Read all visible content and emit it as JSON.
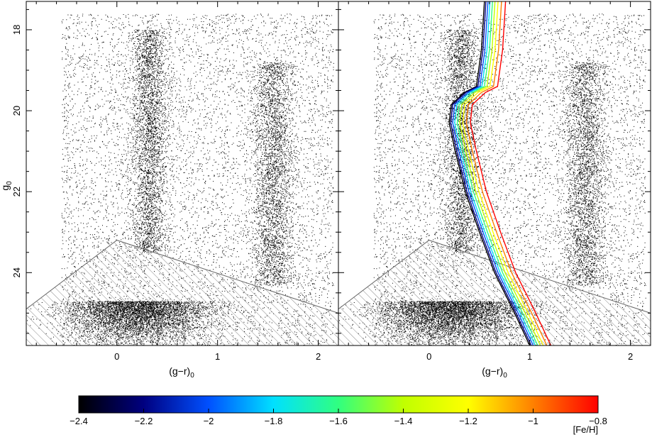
{
  "chart_data": [
    {
      "type": "scatter",
      "panel": "left",
      "title": "",
      "xlabel": "(g−r)",
      "xlabel_sub": "0",
      "ylabel": "g",
      "ylabel_sub": "0",
      "xlim": [
        -0.9,
        2.2
      ],
      "ylim": [
        25.8,
        17.3
      ],
      "y_inverted": true,
      "xticks": [
        0,
        1,
        2
      ],
      "yticks": [
        18,
        20,
        22,
        24
      ],
      "hatched_region": [
        [
          -0.9,
          24.9
        ],
        [
          0.0,
          23.2
        ],
        [
          2.2,
          25.0
        ],
        [
          2.2,
          25.8
        ],
        [
          -0.9,
          25.8
        ]
      ],
      "density_features": [
        {
          "x": 0.32,
          "y_range": [
            18.0,
            23.5
          ]
        },
        {
          "x": 1.55,
          "y_range": [
            18.8,
            24.3
          ]
        },
        {
          "x_range": [
            -0.5,
            0.9
          ],
          "y_range": [
            23.5,
            25.8
          ]
        }
      ]
    },
    {
      "type": "line",
      "panel": "right",
      "title": "",
      "xlabel": "(g−r)",
      "xlabel_sub": "0",
      "xlim": [
        -0.9,
        2.2
      ],
      "ylim": [
        25.8,
        17.3
      ],
      "y_inverted": true,
      "xticks": [
        0,
        1,
        2
      ],
      "hatched_region": [
        [
          -0.9,
          24.9
        ],
        [
          0.0,
          23.2
        ],
        [
          2.2,
          25.0
        ],
        [
          2.2,
          25.8
        ],
        [
          -0.9,
          25.8
        ]
      ],
      "scatter_same_as_left": true,
      "series_colormap": "FeH",
      "isochrone_template": [
        [
          0.55,
          17.3
        ],
        [
          0.52,
          18.5
        ],
        [
          0.47,
          19.4
        ],
        [
          0.35,
          19.55
        ],
        [
          0.22,
          19.85
        ],
        [
          0.2,
          20.3
        ],
        [
          0.26,
          21.0
        ],
        [
          0.36,
          22.0
        ],
        [
          0.5,
          23.0
        ],
        [
          0.65,
          24.0
        ],
        [
          0.85,
          25.0
        ],
        [
          1.0,
          25.8
        ]
      ],
      "series": [
        {
          "feh": -2.4,
          "dx": 0.0
        },
        {
          "feh": -2.2,
          "dx": 0.015
        },
        {
          "feh": -2.0,
          "dx": 0.035
        },
        {
          "feh": -1.8,
          "dx": 0.055
        },
        {
          "feh": -1.6,
          "dx": 0.08
        },
        {
          "feh": -1.4,
          "dx": 0.105
        },
        {
          "feh": -1.2,
          "dx": 0.135
        },
        {
          "feh": -1.0,
          "dx": 0.17
        },
        {
          "feh": -0.8,
          "dx": 0.21
        }
      ]
    }
  ],
  "colorbar": {
    "min": -2.4,
    "max": -0.8,
    "ticks": [
      "−2.4",
      "−2.2",
      "−2",
      "−1.8",
      "−1.6",
      "−1.4",
      "−1.2",
      "−1",
      "−0.8"
    ],
    "tick_values": [
      -2.4,
      -2.2,
      -2.0,
      -1.8,
      -1.6,
      -1.4,
      -1.2,
      -1.0,
      -0.8
    ],
    "label": "[Fe/H]",
    "colors": [
      "#000000",
      "#000080",
      "#0050ff",
      "#00e0ff",
      "#30ff80",
      "#c0ff00",
      "#ffff00",
      "#ff8000",
      "#ff0000"
    ]
  }
}
